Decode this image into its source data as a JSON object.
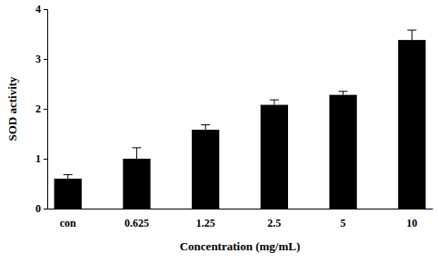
{
  "chart_data": {
    "type": "bar",
    "x_label": "Concentration (mg/mL)",
    "y_label": "SOD activity",
    "categories": [
      "con",
      "0.625",
      "1.25",
      "2.5",
      "5",
      "10"
    ],
    "values": [
      0.6,
      1.0,
      1.58,
      2.08,
      2.28,
      3.38
    ],
    "errors": [
      0.08,
      0.22,
      0.1,
      0.1,
      0.07,
      0.2
    ],
    "color": "#000000",
    "ylim": [
      0,
      4
    ],
    "yticks": [
      0,
      1,
      2,
      3,
      4
    ],
    "grid": false
  }
}
